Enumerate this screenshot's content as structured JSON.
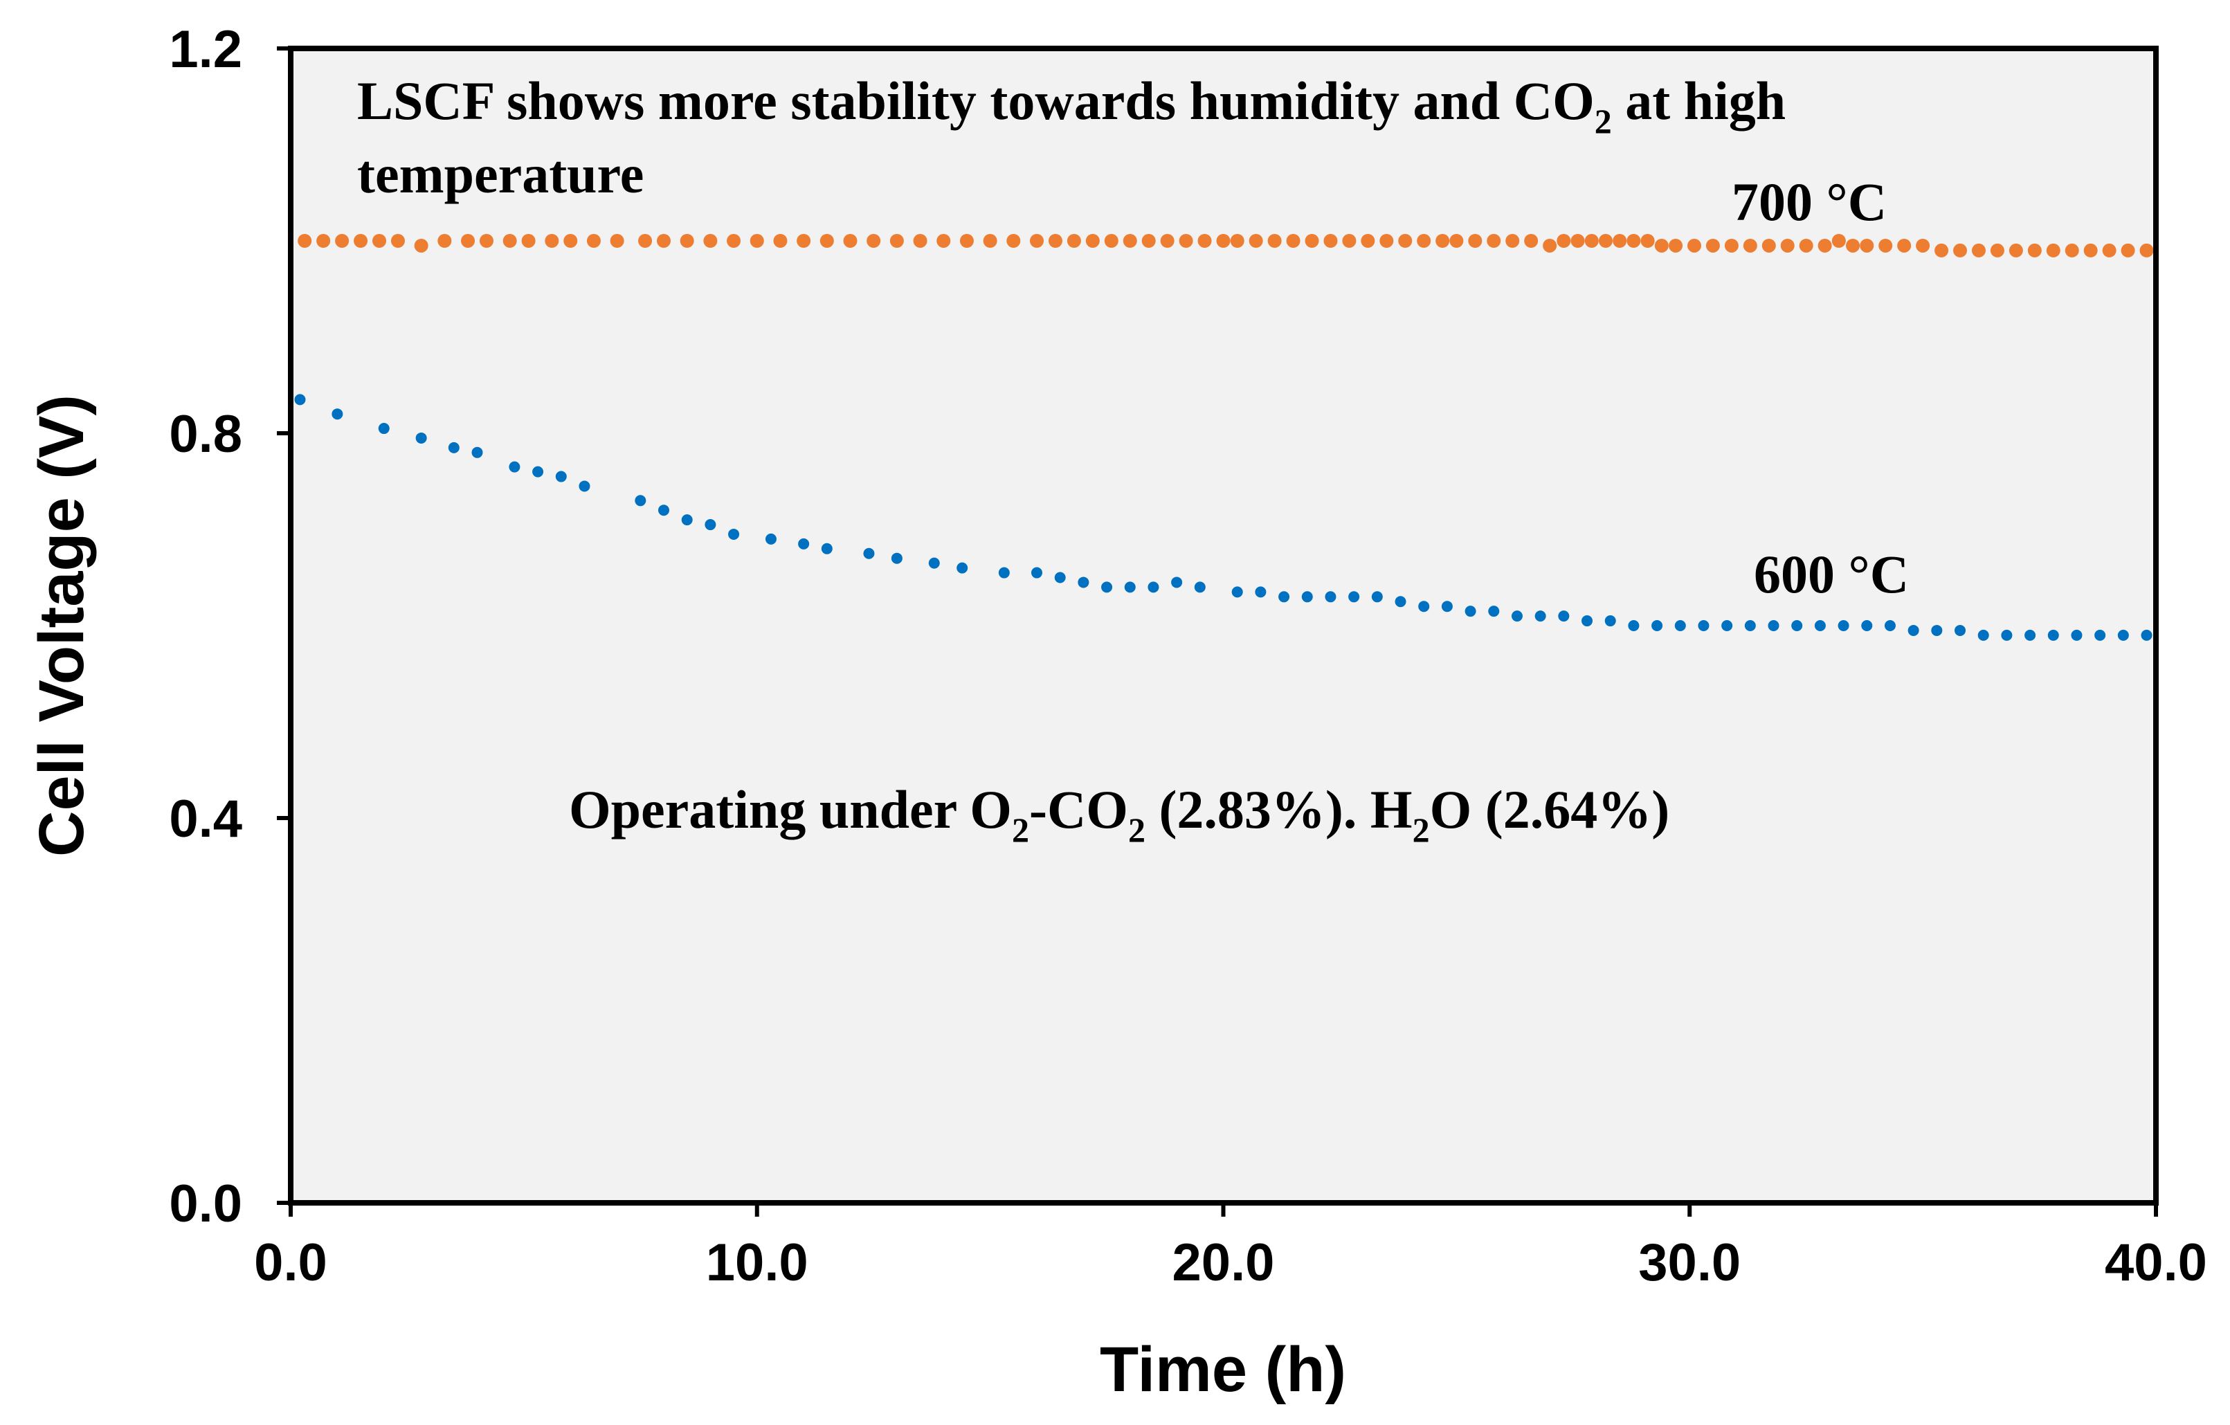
{
  "chart_data": {
    "type": "scatter",
    "xlabel": "Time (h)",
    "ylabel": "Cell Voltage  (V)",
    "xlim": [
      0,
      40
    ],
    "ylim": [
      0,
      1.2
    ],
    "grid": false,
    "plot_background": "#f2f2f2",
    "x_ticks": [
      0,
      10,
      20,
      30,
      40
    ],
    "x_tick_labels": [
      "0.0",
      "10.0",
      "20.0",
      "30.0",
      "40.0"
    ],
    "y_ticks": [
      0,
      0.4,
      0.8,
      1.2
    ],
    "y_tick_labels": [
      "0.0",
      "0.4",
      "0.8",
      "1.2"
    ],
    "annotations": {
      "top_line1_a": "LSCF shows more stability  towards humidity and CO",
      "top_line1_sub": "2",
      "top_line1_b": " at high",
      "top_line2": "temperature",
      "label_700": "700 °C",
      "label_600": "600 °C",
      "op_a": "Operating under O",
      "op_sub1": "2",
      "op_b": "-CO",
      "op_sub2": "2",
      "op_c": " (2.83%). H",
      "op_sub3": "2",
      "op_d": "O (2.64%)"
    },
    "series": [
      {
        "name": "700 °C",
        "color": "#ED7D31",
        "x": [
          0.3,
          0.7,
          1.1,
          1.5,
          1.9,
          2.3,
          2.8,
          3.3,
          3.8,
          4.2,
          4.7,
          5.1,
          5.6,
          6.0,
          6.5,
          7.0,
          7.6,
          8.0,
          8.5,
          9.0,
          9.5,
          10.0,
          10.5,
          11.0,
          11.5,
          12.0,
          12.5,
          13.0,
          13.5,
          14.0,
          14.5,
          15.0,
          15.5,
          16.0,
          16.4,
          16.8,
          17.2,
          17.6,
          18.0,
          18.4,
          18.8,
          19.2,
          19.6,
          20.0,
          20.3,
          20.7,
          21.1,
          21.5,
          21.9,
          22.3,
          22.7,
          23.1,
          23.5,
          23.9,
          24.3,
          24.7,
          25.0,
          25.4,
          25.8,
          26.2,
          26.6,
          27.0,
          27.3,
          27.6,
          27.9,
          28.2,
          28.5,
          28.8,
          29.1,
          29.4,
          29.7,
          30.1,
          30.5,
          30.9,
          31.3,
          31.7,
          32.1,
          32.5,
          32.9,
          33.2,
          33.5,
          33.8,
          34.2,
          34.6,
          35.0,
          35.4,
          35.8,
          36.2,
          36.6,
          37.0,
          37.4,
          37.8,
          38.2,
          38.6,
          39.0,
          39.4,
          39.8
        ],
        "y": [
          1.0,
          1.0,
          1.0,
          1.0,
          1.0,
          1.0,
          0.995,
          1.0,
          1.0,
          1.0,
          1.0,
          1.0,
          1.0,
          1.0,
          1.0,
          1.0,
          1.0,
          1.0,
          1.0,
          1.0,
          1.0,
          1.0,
          1.0,
          1.0,
          1.0,
          1.0,
          1.0,
          1.0,
          1.0,
          1.0,
          1.0,
          1.0,
          1.0,
          1.0,
          1.0,
          1.0,
          1.0,
          1.0,
          1.0,
          1.0,
          1.0,
          1.0,
          1.0,
          1.0,
          1.0,
          1.0,
          1.0,
          1.0,
          1.0,
          1.0,
          1.0,
          1.0,
          1.0,
          1.0,
          1.0,
          1.0,
          1.0,
          1.0,
          1.0,
          1.0,
          1.0,
          0.995,
          1.0,
          1.0,
          1.0,
          1.0,
          1.0,
          1.0,
          1.0,
          0.995,
          0.995,
          0.995,
          0.995,
          0.995,
          0.995,
          0.995,
          0.995,
          0.995,
          0.995,
          1.0,
          0.995,
          0.995,
          0.995,
          0.995,
          0.995,
          0.99,
          0.99,
          0.99,
          0.99,
          0.99,
          0.99,
          0.99,
          0.99,
          0.99,
          0.99,
          0.99,
          0.99
        ]
      },
      {
        "name": "600 °C",
        "color": "#0070C0",
        "x": [
          0.2,
          1.0,
          2.0,
          2.8,
          3.5,
          4.0,
          4.8,
          5.3,
          5.8,
          6.3,
          7.5,
          8.0,
          8.5,
          9.0,
          9.5,
          10.3,
          11.0,
          11.5,
          12.4,
          13.0,
          13.8,
          14.4,
          15.3,
          16.0,
          16.5,
          17.0,
          17.5,
          18.0,
          18.5,
          19.0,
          19.5,
          20.3,
          20.8,
          21.3,
          21.8,
          22.3,
          22.8,
          23.3,
          23.8,
          24.3,
          24.8,
          25.3,
          25.8,
          26.3,
          26.8,
          27.3,
          27.8,
          28.3,
          28.8,
          29.3,
          29.8,
          30.3,
          30.8,
          31.3,
          31.8,
          32.3,
          32.8,
          33.3,
          33.8,
          34.3,
          34.8,
          35.3,
          35.8,
          36.3,
          36.8,
          37.3,
          37.8,
          38.3,
          38.8,
          39.3,
          39.8
        ],
        "y": [
          0.835,
          0.82,
          0.805,
          0.795,
          0.785,
          0.78,
          0.765,
          0.76,
          0.755,
          0.745,
          0.73,
          0.72,
          0.71,
          0.705,
          0.695,
          0.69,
          0.685,
          0.68,
          0.675,
          0.67,
          0.665,
          0.66,
          0.655,
          0.655,
          0.65,
          0.645,
          0.64,
          0.64,
          0.64,
          0.645,
          0.64,
          0.635,
          0.635,
          0.63,
          0.63,
          0.63,
          0.63,
          0.63,
          0.625,
          0.62,
          0.62,
          0.615,
          0.615,
          0.61,
          0.61,
          0.61,
          0.605,
          0.605,
          0.6,
          0.6,
          0.6,
          0.6,
          0.6,
          0.6,
          0.6,
          0.6,
          0.6,
          0.6,
          0.6,
          0.6,
          0.595,
          0.595,
          0.595,
          0.59,
          0.59,
          0.59,
          0.59,
          0.59,
          0.59,
          0.59,
          0.59
        ]
      }
    ]
  }
}
